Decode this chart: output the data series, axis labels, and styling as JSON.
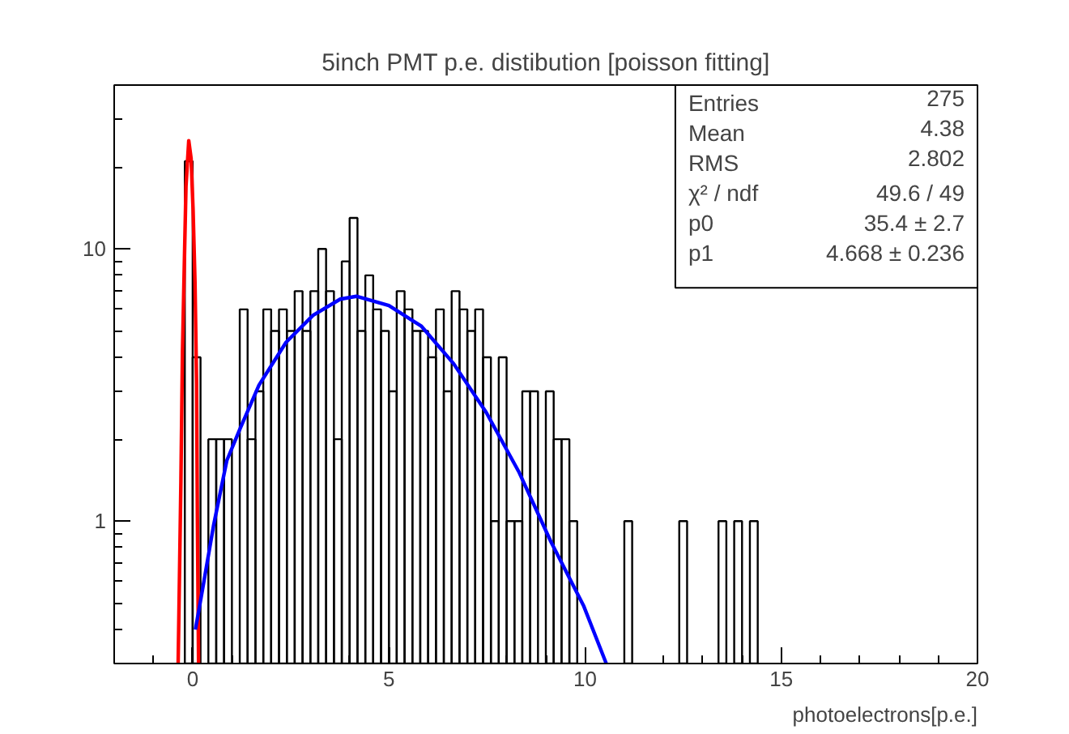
{
  "chart_data": {
    "type": "histogram",
    "title": "5inch PMT p.e. distibution [poisson fitting]",
    "xlabel": "photoelectrons[p.e.]",
    "color": "#000000",
    "bins": [
      -0.2,
      0,
      0.2,
      0.4,
      0.6,
      0.8,
      1,
      1.2,
      1.4,
      1.6,
      1.8,
      2,
      2.2,
      2.4,
      2.6,
      2.8,
      3,
      3.2,
      3.4,
      3.6,
      3.8,
      4,
      4.2,
      4.4,
      4.6,
      4.8,
      5,
      5.2,
      5.4,
      5.6,
      5.8,
      6,
      6.2,
      6.4,
      6.6,
      6.8,
      7,
      7.2,
      7.4,
      7.6,
      7.8,
      8,
      8.2,
      8.4,
      8.6,
      8.8,
      9,
      9.2,
      9.4,
      9.6,
      9.8,
      10,
      10.2,
      10.4,
      10.6,
      10.8,
      11,
      11.2,
      11.4,
      11.6,
      11.8,
      12,
      12.2,
      12.4,
      12.6,
      12.8,
      13,
      13.2,
      13.4,
      13.6,
      13.8,
      14,
      14.2,
      14.4
    ],
    "values": [
      21,
      4,
      null,
      2,
      2,
      2,
      null,
      6,
      2,
      3,
      6,
      5,
      6,
      5,
      7,
      5,
      7,
      10,
      7,
      2,
      9,
      13,
      5,
      8,
      6,
      5,
      3,
      7,
      6,
      5,
      5,
      4,
      6,
      3,
      7,
      6,
      5,
      6,
      4,
      1,
      4,
      1,
      1,
      3,
      3,
      null,
      3,
      2,
      2,
      1,
      null,
      null,
      null,
      null,
      null,
      null,
      1,
      null,
      null,
      null,
      null,
      null,
      null,
      1,
      null,
      null,
      null,
      null,
      1,
      null,
      1,
      null,
      1
    ],
    "series": [
      {
        "type": "line",
        "color": "#ff0000",
        "x": [
          -0.37,
          -0.3,
          -0.26,
          -0.21,
          -0.17,
          -0.1,
          -0.04,
          0.01,
          0.06,
          0.1,
          0.12,
          0.15
        ],
        "values": [
          0.3,
          1.4,
          4.2,
          9.2,
          17,
          25,
          21.5,
          14,
          7.5,
          3.2,
          1.05,
          0.3
        ]
      },
      {
        "type": "line",
        "color": "#0000ff",
        "x": [
          0.07,
          0.25,
          0.53,
          0.87,
          1.21,
          1.69,
          2.38,
          3.07,
          3.76,
          4.17,
          5.0,
          5.83,
          6.65,
          7.48,
          8.31,
          9.13,
          9.96,
          10.54
        ],
        "values": [
          0.4,
          0.56,
          0.96,
          1.67,
          2.19,
          3.16,
          4.54,
          5.71,
          6.54,
          6.7,
          6.2,
          5.2,
          3.79,
          2.51,
          1.52,
          0.84,
          0.49,
          0.3
        ]
      }
    ],
    "log": "y",
    "xlim": [
      -2,
      20
    ],
    "ylim": [
      0.3,
      40
    ],
    "xticks": [
      {
        "value": -2,
        "label": null
      },
      {
        "value": -1,
        "label": null
      },
      0,
      {
        "value": 1,
        "label": null
      },
      {
        "value": 2,
        "label": null
      },
      {
        "value": 3,
        "label": null
      },
      {
        "value": 4,
        "label": null
      },
      5,
      {
        "value": 6,
        "label": null
      },
      {
        "value": 7,
        "label": null
      },
      {
        "value": 8,
        "label": null
      },
      {
        "value": 9,
        "label": null
      },
      10,
      {
        "value": 11,
        "label": null
      },
      {
        "value": 12,
        "label": null
      },
      {
        "value": 13,
        "label": null
      },
      {
        "value": 14,
        "label": null
      },
      15,
      {
        "value": 16,
        "label": null
      },
      {
        "value": 17,
        "label": null
      },
      {
        "value": 18,
        "label": null
      },
      {
        "value": 19,
        "label": null
      },
      20
    ],
    "yticks": [
      {
        "value": 0.3,
        "label": null
      },
      {
        "value": 0.4,
        "label": null
      },
      {
        "value": 0.5,
        "label": null
      },
      {
        "value": 0.6,
        "label": null
      },
      {
        "value": 0.7,
        "label": null
      },
      {
        "value": 0.8,
        "label": null
      },
      {
        "value": 0.9,
        "label": null
      },
      1,
      {
        "value": 2,
        "label": null
      },
      {
        "value": 3,
        "label": null
      },
      {
        "value": 4,
        "label": null
      },
      {
        "value": 5,
        "label": null
      },
      {
        "value": 6,
        "label": null
      },
      {
        "value": 7,
        "label": null
      },
      {
        "value": 8,
        "label": null
      },
      {
        "value": 9,
        "label": null
      },
      10,
      {
        "value": 20,
        "label": null
      },
      {
        "value": 30,
        "label": null
      }
    ],
    "annotations": [
      "Entries",
      "275",
      "Mean",
      "4.38",
      "RMS",
      "2.802",
      "χ² / ndf",
      "49.6 / 49",
      "p0",
      "35.4 ± 2.7",
      "p1",
      "4.668 ± 0.236"
    ]
  }
}
